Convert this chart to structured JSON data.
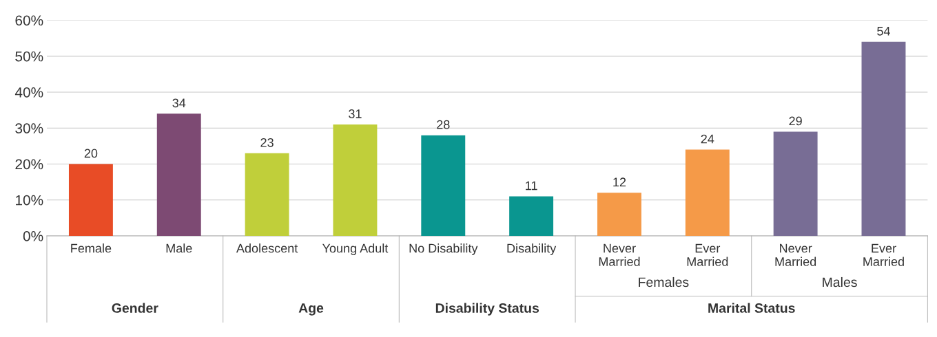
{
  "chart_data": {
    "type": "bar",
    "categories": [
      "Female",
      "Male",
      "Adolescent",
      "Young Adult",
      "No Disability",
      "Disability",
      "Never\nMarried",
      "Ever\nMarried",
      "Never\nMarried",
      "Ever\nMarried"
    ],
    "values": [
      20,
      34,
      23,
      31,
      28,
      11,
      12,
      24,
      29,
      54
    ],
    "colors": [
      "#e84c26",
      "#7d4a73",
      "#c0cf3a",
      "#c0cf3a",
      "#0a9690",
      "#0a9690",
      "#f59a48",
      "#f59a48",
      "#786d95",
      "#786d95"
    ],
    "ylim": [
      0,
      60
    ],
    "yticks": [
      {
        "value": 0,
        "label": "0%"
      },
      {
        "value": 10,
        "label": "10%"
      },
      {
        "value": 20,
        "label": "20%"
      },
      {
        "value": 30,
        "label": "30%"
      },
      {
        "value": 40,
        "label": "40%"
      },
      {
        "value": 50,
        "label": "50%"
      },
      {
        "value": 60,
        "label": "60%"
      }
    ],
    "grid": "y",
    "data_labels": true,
    "annotations": [
      "Females",
      "Males",
      "Gender",
      "Age",
      "Disability Status",
      "Marital Status"
    ]
  }
}
